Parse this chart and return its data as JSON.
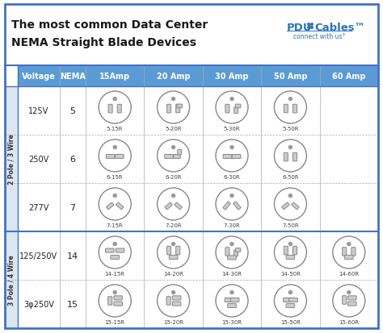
{
  "title_line1": "The most common Data Center",
  "title_line2": "NEMA Straight Blade Devices",
  "header_cols": [
    "Voltage",
    "NEMA",
    "15Amp",
    "20 Amp",
    "30 Amp",
    "50 Amp",
    "60 Amp"
  ],
  "header_bg": "#5b9bd5",
  "border_color": "#4472c4",
  "side_label_2pole": "2 Pole / 3 Wire",
  "side_label_3pole": "3 Pole / 4 Wire",
  "side_bg": "#dce6f1",
  "rows": [
    {
      "voltage": "125V",
      "nema": "5",
      "labels": [
        "5-15R",
        "5-20R",
        "5-30R",
        "5-50R",
        null
      ]
    },
    {
      "voltage": "250V",
      "nema": "6",
      "labels": [
        "6-15R",
        "6-20R",
        "6-30R",
        "6-50R",
        null
      ]
    },
    {
      "voltage": "277V",
      "nema": "7",
      "labels": [
        "7-15R",
        "7-20R",
        "7-30R",
        "7-50R",
        null
      ]
    },
    {
      "voltage": "125/250V",
      "nema": "14",
      "labels": [
        "14-15R",
        "14-20R",
        "14-30R",
        "14-50R",
        "14-60R"
      ]
    },
    {
      "voltage": "3φ250V",
      "nema": "15",
      "labels": [
        "15-15R",
        "15-20R",
        "15-30R",
        "15-50R",
        "15-60R"
      ]
    }
  ]
}
